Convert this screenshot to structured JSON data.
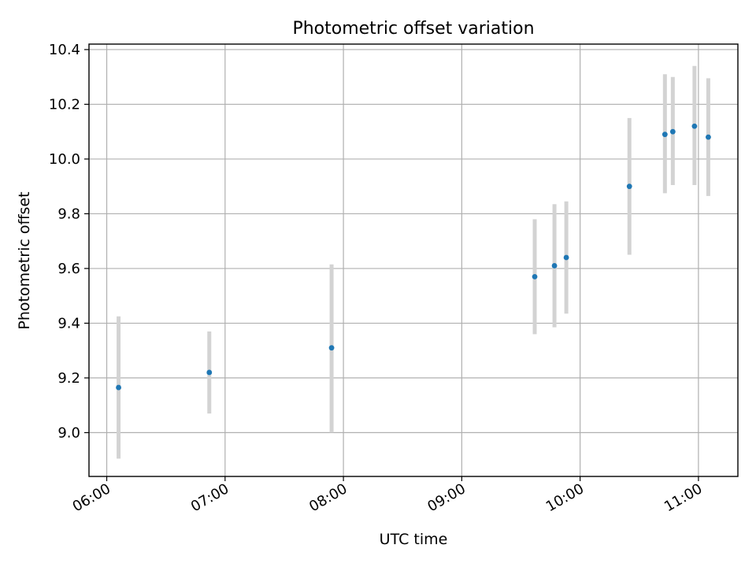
{
  "chart_data": {
    "type": "scatter",
    "title": "Photometric offset variation",
    "xlabel": "UTC time",
    "ylabel": "Photometric offset",
    "x_range": [
      "05:51",
      "11:20"
    ],
    "y_range": [
      8.84,
      10.42
    ],
    "x_ticks": [
      "06:00",
      "07:00",
      "08:00",
      "09:00",
      "10:00",
      "11:00"
    ],
    "y_ticks": [
      "9.0",
      "9.2",
      "9.4",
      "9.6",
      "9.8",
      "10.0",
      "10.2",
      "10.4"
    ],
    "grid": true,
    "legend": "none",
    "colors": {
      "point": "#1f77b4",
      "error_bar": "#d3d3d3",
      "grid": "#b0b0b0"
    },
    "points": [
      {
        "x": "06:06",
        "y": 9.165,
        "y_low": 8.905,
        "y_high": 9.425
      },
      {
        "x": "06:52",
        "y": 9.22,
        "y_low": 9.07,
        "y_high": 9.37
      },
      {
        "x": "07:54",
        "y": 9.31,
        "y_low": 9.0,
        "y_high": 9.615
      },
      {
        "x": "09:37",
        "y": 9.57,
        "y_low": 9.36,
        "y_high": 9.78
      },
      {
        "x": "09:47",
        "y": 9.61,
        "y_low": 9.385,
        "y_high": 9.835
      },
      {
        "x": "09:53",
        "y": 9.64,
        "y_low": 9.435,
        "y_high": 9.845
      },
      {
        "x": "10:25",
        "y": 9.9,
        "y_low": 9.65,
        "y_high": 10.15
      },
      {
        "x": "10:43",
        "y": 10.09,
        "y_low": 9.875,
        "y_high": 10.31
      },
      {
        "x": "10:47",
        "y": 10.1,
        "y_low": 9.905,
        "y_high": 10.3
      },
      {
        "x": "10:58",
        "y": 10.12,
        "y_low": 9.905,
        "y_high": 10.34
      },
      {
        "x": "11:05",
        "y": 10.08,
        "y_low": 9.865,
        "y_high": 10.295
      }
    ]
  }
}
